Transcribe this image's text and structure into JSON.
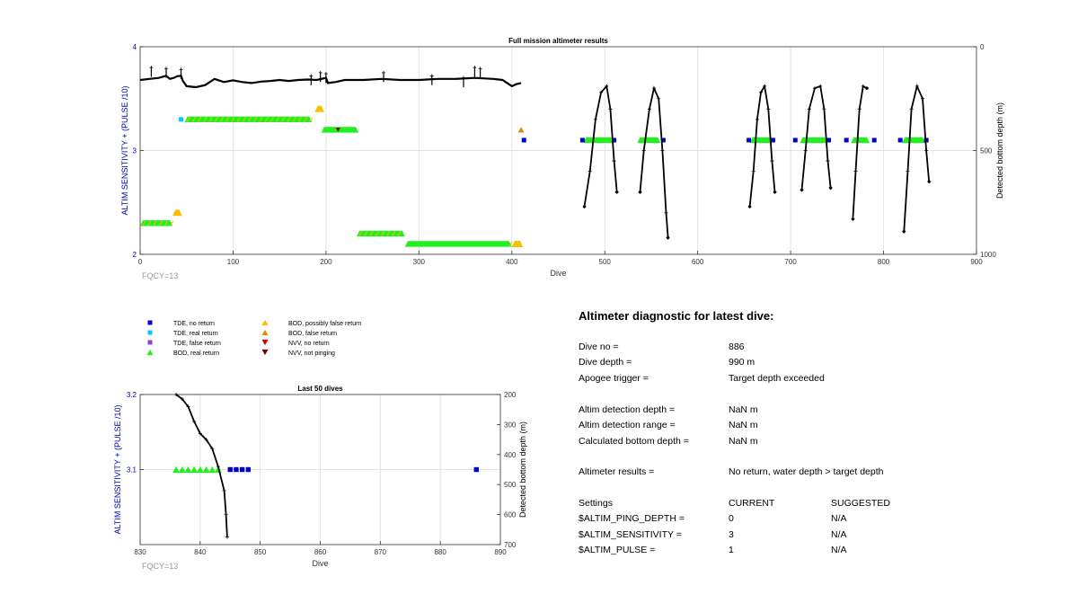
{
  "chart_data": [
    {
      "type": "scatter",
      "title": "Full mission altimeter results",
      "xlabel": "Dive",
      "ylabel": "ALTIM SENSITIVITY + (PULSE /10)",
      "y2label": "Detected bottom depth (m)",
      "xlim": [
        0,
        900
      ],
      "ylim": [
        2,
        4
      ],
      "y2lim": [
        1000,
        0
      ],
      "xticks": [
        0,
        100,
        200,
        300,
        400,
        500,
        600,
        700,
        800,
        900
      ],
      "yticks": [
        "2",
        "3",
        "4"
      ],
      "y2ticks": [
        "1000",
        "500",
        "0"
      ],
      "annotation": "FQCY=13",
      "grid": true,
      "bod_real_segments": [
        {
          "x": [
            48,
            185
          ],
          "y": 3.3
        },
        {
          "x": [
            0,
            35
          ],
          "y": 2.3
        },
        {
          "x": [
            195,
            235
          ],
          "y": 3.2
        },
        {
          "x": [
            233,
            285
          ],
          "y": 2.2
        },
        {
          "x": [
            285,
            400
          ],
          "y": 2.1
        },
        {
          "x": [
            477,
            510
          ],
          "y": 3.1
        },
        {
          "x": [
            535,
            560
          ],
          "y": 3.1
        },
        {
          "x": [
            656,
            680
          ],
          "y": 3.1
        },
        {
          "x": [
            710,
            740
          ],
          "y": 3.1
        },
        {
          "x": [
            765,
            785
          ],
          "y": 3.1
        },
        {
          "x": [
            820,
            845
          ],
          "y": 3.1
        }
      ],
      "bod_possibly_false": [
        {
          "x": [
            188,
            198
          ],
          "y": 3.4
        },
        {
          "x": [
            35,
            45
          ],
          "y": 2.4
        },
        {
          "x": [
            400,
            412
          ],
          "y": 2.1
        }
      ],
      "bod_false": [
        {
          "x": 410,
          "y": 3.2
        }
      ],
      "tde_no_return": [
        {
          "x": 413,
          "y": 3.1
        },
        {
          "x": 476,
          "y": 3.1
        },
        {
          "x": 510,
          "y": 3.1
        },
        {
          "x": 563,
          "y": 3.1
        },
        {
          "x": 655,
          "y": 3.1
        },
        {
          "x": 681,
          "y": 3.1
        },
        {
          "x": 705,
          "y": 3.1
        },
        {
          "x": 741,
          "y": 3.1
        },
        {
          "x": 760,
          "y": 3.1
        },
        {
          "x": 790,
          "y": 3.1
        },
        {
          "x": 818,
          "y": 3.1
        },
        {
          "x": 846,
          "y": 3.1
        }
      ],
      "tde_real_return": [
        {
          "x": 44,
          "y": 3.3
        }
      ],
      "nvv_not_pinging": [
        {
          "x": 213,
          "y": 3.2
        }
      ],
      "bottom_depth_series": {
        "name": "Detected bottom depth",
        "baseline": [
          [
            0,
            160
          ],
          [
            10,
            155
          ],
          [
            20,
            150
          ],
          [
            28,
            140
          ],
          [
            32,
            155
          ],
          [
            36,
            150
          ],
          [
            40,
            142
          ],
          [
            44,
            140
          ],
          [
            46,
            165
          ],
          [
            50,
            190
          ],
          [
            60,
            195
          ],
          [
            70,
            185
          ],
          [
            80,
            155
          ],
          [
            90,
            170
          ],
          [
            100,
            162
          ],
          [
            110,
            170
          ],
          [
            120,
            175
          ],
          [
            130,
            168
          ],
          [
            140,
            165
          ],
          [
            150,
            160
          ],
          [
            160,
            165
          ],
          [
            170,
            160
          ],
          [
            180,
            158
          ],
          [
            190,
            160
          ],
          [
            200,
            150
          ],
          [
            202,
            175
          ],
          [
            210,
            170
          ],
          [
            220,
            160
          ],
          [
            240,
            160
          ],
          [
            260,
            155
          ],
          [
            280,
            160
          ],
          [
            300,
            160
          ],
          [
            320,
            155
          ],
          [
            340,
            155
          ],
          [
            360,
            150
          ],
          [
            380,
            155
          ],
          [
            390,
            160
          ],
          [
            395,
            175
          ],
          [
            400,
            190
          ],
          [
            405,
            180
          ],
          [
            410,
            175
          ]
        ],
        "spikes": [
          [
            12,
            100
          ],
          [
            28,
            105
          ],
          [
            44,
            110
          ],
          [
            184,
            140
          ],
          [
            194,
            125
          ],
          [
            200,
            130
          ],
          [
            262,
            125
          ],
          [
            314,
            140
          ],
          [
            348,
            150
          ],
          [
            360,
            100
          ],
          [
            366,
            105
          ]
        ],
        "dives": [
          {
            "points": [
              [
                478,
                770
              ],
              [
                484,
                600
              ],
              [
                490,
                350
              ],
              [
                496,
                220
              ],
              [
                502,
                190
              ],
              [
                506,
                300
              ],
              [
                510,
                550
              ],
              [
                513,
                700
              ]
            ]
          },
          {
            "points": [
              [
                538,
                700
              ],
              [
                542,
                500
              ],
              [
                548,
                300
              ],
              [
                553,
                200
              ],
              [
                558,
                250
              ],
              [
                562,
                500
              ],
              [
                566,
                800
              ],
              [
                568,
                920
              ]
            ]
          },
          {
            "points": [
              [
                656,
                770
              ],
              [
                660,
                600
              ],
              [
                664,
                350
              ],
              [
                668,
                220
              ],
              [
                672,
                190
              ],
              [
                676,
                300
              ],
              [
                680,
                550
              ],
              [
                683,
                700
              ]
            ]
          },
          {
            "points": [
              [
                712,
                690
              ],
              [
                716,
                500
              ],
              [
                720,
                300
              ],
              [
                726,
                200
              ],
              [
                732,
                190
              ],
              [
                736,
                300
              ],
              [
                740,
                550
              ],
              [
                743,
                680
              ]
            ]
          },
          {
            "points": [
              [
                767,
                830
              ],
              [
                770,
                600
              ],
              [
                774,
                300
              ],
              [
                778,
                190
              ],
              [
                782,
                200
              ]
            ]
          },
          {
            "points": [
              [
                822,
                890
              ],
              [
                826,
                600
              ],
              [
                830,
                300
              ],
              [
                836,
                190
              ],
              [
                842,
                250
              ],
              [
                846,
                500
              ],
              [
                849,
                650
              ]
            ]
          }
        ]
      }
    },
    {
      "type": "scatter",
      "title": "Last 50 dives",
      "xlabel": "Dive",
      "ylabel": "ALTIM SENSITIVITY + (PULSE /10)",
      "y2label": "Detected bottom depth (m)",
      "xlim": [
        830,
        890
      ],
      "ylim": [
        3.0,
        3.2
      ],
      "y2lim": [
        700,
        200
      ],
      "xticks": [
        830,
        840,
        850,
        860,
        870,
        880,
        890
      ],
      "yticks": [
        "3.1",
        "3.2"
      ],
      "y2ticks": [
        "200",
        "300",
        "400",
        "500",
        "600",
        "700"
      ],
      "annotation": "FQCY=13",
      "grid": true,
      "bod_real_return": [
        {
          "x": 836,
          "y": 3.1
        },
        {
          "x": 837,
          "y": 3.1
        },
        {
          "x": 838,
          "y": 3.1
        },
        {
          "x": 839,
          "y": 3.1
        },
        {
          "x": 840,
          "y": 3.1
        },
        {
          "x": 841,
          "y": 3.1
        },
        {
          "x": 842,
          "y": 3.1
        },
        {
          "x": 843,
          "y": 3.1
        }
      ],
      "tde_no_return": [
        {
          "x": 845,
          "y": 3.1
        },
        {
          "x": 846,
          "y": 3.1
        },
        {
          "x": 847,
          "y": 3.1
        },
        {
          "x": 848,
          "y": 3.1
        },
        {
          "x": 886,
          "y": 3.1
        }
      ],
      "bottom_depth_series": {
        "name": "Detected bottom depth",
        "points": [
          [
            836,
            200
          ],
          [
            837,
            215
          ],
          [
            838,
            240
          ],
          [
            839,
            290
          ],
          [
            840,
            330
          ],
          [
            841,
            350
          ],
          [
            842,
            380
          ],
          [
            843,
            440
          ],
          [
            844,
            520
          ],
          [
            844.3,
            600
          ],
          [
            844.5,
            675
          ]
        ]
      }
    }
  ],
  "legend": {
    "tde_no_return": "TDE, no return",
    "tde_real_return": "TDE, real return",
    "tde_false_return": "TDE, false return",
    "bod_real_return": "BOD, real return",
    "bod_possibly_false": "BOD, possibly false return",
    "bod_false_return": "BOD, false return",
    "nvv_no_return": "NVV, no return",
    "nvv_not_pinging": "NVV, not pinging"
  },
  "colors": {
    "tde_no_return": "#0000cc",
    "tde_real_return": "#00ccff",
    "tde_false_return": "#8844cc",
    "bod_real_return": "#22ee22",
    "bod_possibly_false": "#f5c000",
    "bod_false_return": "#e08a00",
    "nvv_no_return": "#cc0000",
    "nvv_not_pinging": "#7a0000",
    "axis_label": "#0000aa",
    "fqcy": "#999999",
    "grid": "#e4e4e4"
  },
  "diagnostic": {
    "title": "Altimeter diagnostic for latest dive:",
    "dive_no_label": "Dive no =",
    "dive_no_value": "886",
    "dive_depth_label": "Dive depth =",
    "dive_depth_value": "990 m",
    "apogee_label": "Apogee trigger =",
    "apogee_value": "Target depth exceeded",
    "altim_detect_depth_label": "Altim detection depth =",
    "altim_detect_depth_value": "NaN m",
    "altim_detect_range_label": "Altim detection range =",
    "altim_detect_range_value": "NaN m",
    "calc_bottom_label": "Calculated bottom depth =",
    "calc_bottom_value": "NaN m",
    "results_label": "Altimeter results =",
    "results_value": "No return, water depth > target depth",
    "settings_label": "Settings",
    "current_label": "CURRENT",
    "suggested_label": "SUGGESTED",
    "ping_depth_label": "$ALTIM_PING_DEPTH =",
    "ping_depth_current": "0",
    "ping_depth_suggested": "N/A",
    "sensitivity_label": "$ALTIM_SENSITIVITY =",
    "sensitivity_current": "3",
    "sensitivity_suggested": "N/A",
    "pulse_label": "$ALTIM_PULSE =",
    "pulse_current": "1",
    "pulse_suggested": "N/A"
  }
}
